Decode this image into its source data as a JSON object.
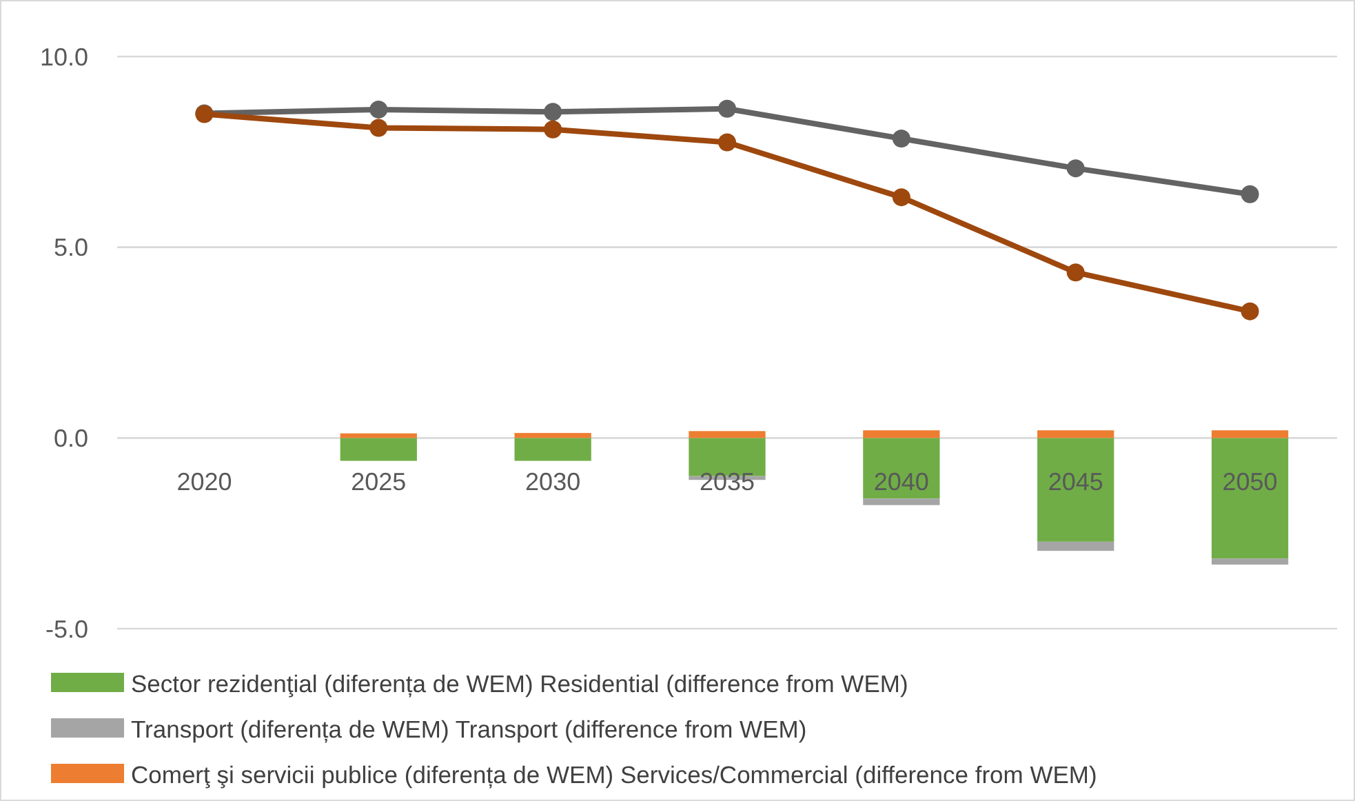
{
  "chart_data": {
    "type": "bar",
    "stacked": true,
    "categories": [
      "2020",
      "2025",
      "2030",
      "2035",
      "2040",
      "2045",
      "2050"
    ],
    "ylim": [
      -5,
      10
    ],
    "yticks": [
      {
        "value": -5,
        "label": "-5.0"
      },
      {
        "value": 0,
        "label": "0.0"
      },
      {
        "value": 5,
        "label": "5.0"
      },
      {
        "value": 10,
        "label": "10.0"
      }
    ],
    "grid": "y",
    "legend": "bottom",
    "marker": "circle",
    "series": [
      {
        "name": "Sector rezidenţial (diferența de WEM) Residential  (difference from WEM)",
        "color": "#70ad47",
        "values": [
          null,
          -0.6,
          -0.6,
          -1.0,
          -1.59,
          -2.72,
          -3.16
        ]
      },
      {
        "name": "Transport (diferența de WEM) Transport  (difference from WEM)",
        "color": "#a5a5a5",
        "values": [
          null,
          0,
          0,
          -0.1,
          -0.17,
          -0.24,
          -0.16
        ]
      },
      {
        "name": "Comerţ şi servicii publice (diferența de WEM) Services/Commercial  (difference from WEM)",
        "color": "#ed7d31",
        "values": [
          null,
          0.12,
          0.13,
          0.18,
          0.2,
          0.2,
          0.2
        ]
      },
      {
        "type": "line",
        "color": "#636363",
        "values": [
          8.51,
          8.61,
          8.55,
          8.63,
          7.85,
          7.07,
          6.39
        ]
      },
      {
        "type": "line",
        "color": "#9e480e",
        "values": [
          8.49,
          8.13,
          8.09,
          7.75,
          6.31,
          4.34,
          3.32
        ]
      }
    ]
  }
}
